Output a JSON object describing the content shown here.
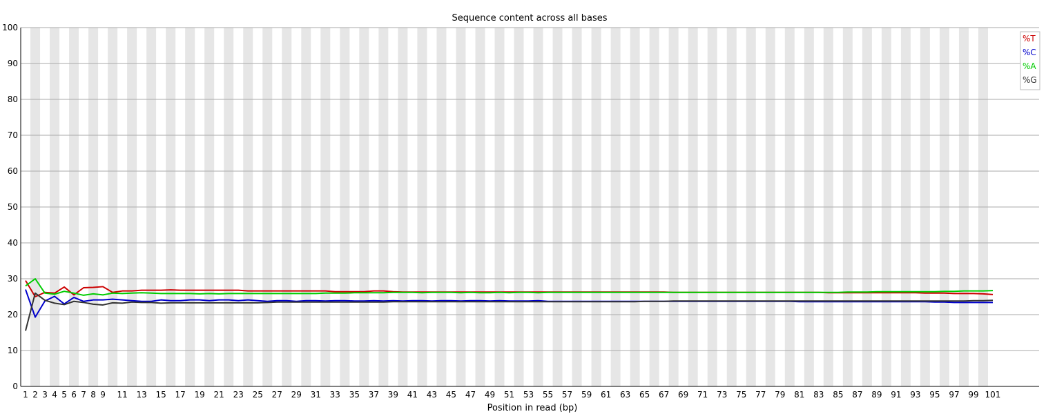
{
  "chart_data": {
    "type": "line",
    "title": "Sequence content across all bases",
    "xlabel": "Position in read (bp)",
    "ylabel": "",
    "ylim": [
      0,
      100
    ],
    "yticks": [
      0,
      10,
      20,
      30,
      40,
      50,
      60,
      70,
      80,
      90,
      100
    ],
    "x": [
      1,
      2,
      3,
      4,
      5,
      6,
      7,
      8,
      9,
      10,
      11,
      12,
      13,
      14,
      15,
      16,
      17,
      18,
      19,
      20,
      21,
      22,
      23,
      24,
      25,
      26,
      27,
      28,
      29,
      30,
      31,
      32,
      33,
      34,
      35,
      36,
      37,
      38,
      39,
      40,
      41,
      42,
      43,
      44,
      45,
      46,
      47,
      48,
      49,
      50,
      51,
      52,
      53,
      54,
      55,
      56,
      57,
      58,
      59,
      60,
      61,
      62,
      63,
      64,
      65,
      66,
      67,
      68,
      69,
      70,
      71,
      72,
      73,
      74,
      75,
      76,
      77,
      78,
      79,
      80,
      81,
      82,
      83,
      84,
      85,
      86,
      87,
      88,
      89,
      90,
      91,
      92,
      93,
      94,
      95,
      96,
      97,
      98,
      99,
      100,
      101
    ],
    "xtick_labels": [
      "1",
      "2",
      "3",
      "4",
      "5",
      "6",
      "7",
      "8",
      "9",
      "11",
      "13",
      "15",
      "17",
      "19",
      "21",
      "23",
      "25",
      "27",
      "29",
      "31",
      "33",
      "35",
      "37",
      "39",
      "41",
      "43",
      "45",
      "47",
      "49",
      "51",
      "53",
      "55",
      "57",
      "59",
      "61",
      "63",
      "65",
      "67",
      "69",
      "71",
      "73",
      "75",
      "77",
      "79",
      "81",
      "83",
      "85",
      "87",
      "89",
      "91",
      "93",
      "95",
      "97",
      "99",
      "101"
    ],
    "grid": true,
    "legend_position": "top-right",
    "series": [
      {
        "name": "%T",
        "color": "#cc0000",
        "values": [
          29.5,
          25.0,
          26.2,
          26.0,
          27.7,
          25.5,
          27.5,
          27.6,
          27.8,
          26.2,
          26.6,
          26.6,
          26.8,
          26.8,
          26.8,
          26.9,
          26.8,
          26.8,
          26.8,
          26.8,
          26.8,
          26.8,
          26.8,
          26.6,
          26.6,
          26.6,
          26.6,
          26.6,
          26.6,
          26.6,
          26.6,
          26.6,
          26.4,
          26.4,
          26.4,
          26.4,
          26.6,
          26.6,
          26.4,
          26.3,
          26.3,
          26.3,
          26.3,
          26.3,
          26.3,
          26.3,
          26.3,
          26.3,
          26.3,
          26.3,
          26.3,
          26.3,
          26.3,
          26.3,
          26.3,
          26.3,
          26.3,
          26.3,
          26.3,
          26.3,
          26.3,
          26.3,
          26.3,
          26.3,
          26.3,
          26.3,
          26.3,
          26.2,
          26.2,
          26.2,
          26.2,
          26.2,
          26.2,
          26.2,
          26.2,
          26.2,
          26.2,
          26.2,
          26.2,
          26.2,
          26.2,
          26.2,
          26.2,
          26.1,
          26.1,
          26.1,
          26.1,
          26.1,
          26.1,
          26.1,
          26.1,
          26.1,
          26.1,
          26.0,
          26.0,
          26.0,
          25.9,
          25.9,
          25.9,
          25.8,
          25.6
        ]
      },
      {
        "name": "%C",
        "color": "#0000cc",
        "values": [
          27.0,
          19.3,
          23.8,
          25.1,
          23.0,
          24.8,
          23.7,
          24.1,
          24.1,
          24.3,
          24.1,
          23.9,
          23.7,
          23.7,
          24.1,
          23.9,
          23.9,
          24.1,
          24.1,
          23.9,
          24.1,
          24.1,
          23.9,
          24.1,
          23.9,
          23.7,
          23.9,
          23.9,
          23.7,
          23.9,
          23.9,
          23.8,
          23.9,
          23.9,
          23.8,
          23.8,
          23.9,
          23.8,
          23.9,
          23.8,
          23.9,
          23.9,
          23.8,
          23.9,
          23.9,
          23.8,
          23.9,
          23.9,
          23.8,
          23.9,
          23.8,
          23.8,
          23.8,
          23.9,
          23.7,
          23.7,
          23.7,
          23.7,
          23.7,
          23.7,
          23.7,
          23.7,
          23.7,
          23.7,
          23.7,
          23.7,
          23.7,
          23.7,
          23.7,
          23.7,
          23.7,
          23.7,
          23.7,
          23.7,
          23.7,
          23.7,
          23.7,
          23.7,
          23.7,
          23.7,
          23.6,
          23.6,
          23.6,
          23.6,
          23.6,
          23.6,
          23.6,
          23.6,
          23.6,
          23.6,
          23.6,
          23.6,
          23.6,
          23.6,
          23.5,
          23.5,
          23.4,
          23.4,
          23.4,
          23.4,
          23.4
        ]
      },
      {
        "name": "%A",
        "color": "#00cc00",
        "values": [
          28.0,
          30.0,
          26.0,
          25.7,
          26.5,
          26.0,
          25.4,
          25.8,
          25.5,
          26.0,
          25.9,
          26.0,
          26.1,
          26.0,
          25.9,
          25.9,
          25.9,
          25.9,
          25.8,
          25.9,
          25.8,
          25.9,
          25.9,
          25.9,
          25.9,
          25.9,
          25.9,
          25.9,
          25.9,
          25.9,
          25.9,
          26.0,
          26.0,
          26.0,
          26.1,
          26.1,
          26.1,
          26.1,
          26.2,
          26.2,
          26.2,
          26.1,
          26.2,
          26.2,
          26.2,
          26.1,
          26.2,
          26.1,
          26.1,
          26.2,
          26.1,
          26.2,
          26.2,
          26.1,
          26.2,
          26.2,
          26.2,
          26.2,
          26.2,
          26.2,
          26.2,
          26.2,
          26.2,
          26.2,
          26.2,
          26.2,
          26.2,
          26.2,
          26.2,
          26.2,
          26.2,
          26.2,
          26.2,
          26.2,
          26.2,
          26.2,
          26.2,
          26.2,
          26.2,
          26.2,
          26.2,
          26.2,
          26.2,
          26.2,
          26.2,
          26.3,
          26.3,
          26.3,
          26.4,
          26.4,
          26.4,
          26.4,
          26.4,
          26.4,
          26.4,
          26.5,
          26.5,
          26.6,
          26.6,
          26.6,
          26.7
        ]
      },
      {
        "name": "%G",
        "color": "#333333",
        "values": [
          15.5,
          26.0,
          24.0,
          23.2,
          22.8,
          23.7,
          23.4,
          22.9,
          22.7,
          23.3,
          23.2,
          23.5,
          23.4,
          23.4,
          23.2,
          23.3,
          23.3,
          23.3,
          23.3,
          23.3,
          23.3,
          23.3,
          23.3,
          23.3,
          23.3,
          23.4,
          23.5,
          23.5,
          23.5,
          23.5,
          23.5,
          23.5,
          23.5,
          23.5,
          23.5,
          23.5,
          23.5,
          23.5,
          23.6,
          23.6,
          23.6,
          23.6,
          23.6,
          23.6,
          23.6,
          23.6,
          23.6,
          23.6,
          23.6,
          23.6,
          23.6,
          23.6,
          23.6,
          23.6,
          23.6,
          23.6,
          23.6,
          23.6,
          23.6,
          23.6,
          23.6,
          23.6,
          23.6,
          23.6,
          23.7,
          23.7,
          23.7,
          23.8,
          23.8,
          23.8,
          23.8,
          23.8,
          23.8,
          23.8,
          23.8,
          23.8,
          23.8,
          23.8,
          23.8,
          23.8,
          23.8,
          23.8,
          23.8,
          23.8,
          23.8,
          23.8,
          23.8,
          23.8,
          23.8,
          23.8,
          23.8,
          23.8,
          23.8,
          23.8,
          23.8,
          23.8,
          23.8,
          23.8,
          23.9,
          23.9,
          24.0
        ]
      }
    ]
  }
}
